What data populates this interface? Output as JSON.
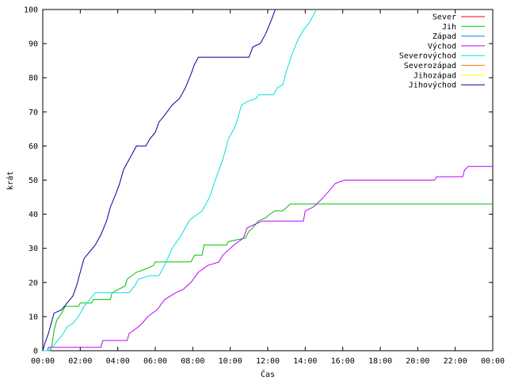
{
  "chart_data": {
    "type": "line",
    "title": "",
    "xlabel": "Čas",
    "ylabel": "krát",
    "xlim": [
      0,
      24
    ],
    "ylim": [
      0,
      100
    ],
    "x_ticks": [
      0,
      2,
      4,
      6,
      8,
      10,
      12,
      14,
      16,
      18,
      20,
      22,
      24
    ],
    "x_tick_labels": [
      "00:00",
      "02:00",
      "04:00",
      "06:00",
      "08:00",
      "10:00",
      "12:00",
      "14:00",
      "16:00",
      "18:00",
      "20:00",
      "22:00",
      "00:00"
    ],
    "y_ticks": [
      0,
      10,
      20,
      30,
      40,
      50,
      60,
      70,
      80,
      90,
      100
    ],
    "y_tick_labels": [
      "0",
      "10",
      "20",
      "30",
      "40",
      "50",
      "60",
      "70",
      "80",
      "90",
      "100"
    ],
    "grid": false,
    "legend_position": "top-right",
    "series": [
      {
        "name": "Sever",
        "color": "#ff0000",
        "points": []
      },
      {
        "name": "Jih",
        "color": "#00c000",
        "points": [
          [
            0,
            0
          ],
          [
            0.4,
            0
          ],
          [
            0.5,
            2
          ],
          [
            0.6,
            6
          ],
          [
            0.75,
            9
          ],
          [
            1.0,
            11
          ],
          [
            1.2,
            13
          ],
          [
            1.9,
            13
          ],
          [
            2.0,
            14
          ],
          [
            2.6,
            14
          ],
          [
            2.7,
            15
          ],
          [
            3.6,
            15
          ],
          [
            3.7,
            17
          ],
          [
            4.4,
            19
          ],
          [
            4.5,
            21
          ],
          [
            5.0,
            23
          ],
          [
            5.5,
            24
          ],
          [
            5.9,
            25
          ],
          [
            6.0,
            26
          ],
          [
            7.9,
            26
          ],
          [
            8.1,
            28
          ],
          [
            8.5,
            28
          ],
          [
            8.6,
            31
          ],
          [
            9.8,
            31
          ],
          [
            9.9,
            32
          ],
          [
            10.8,
            33
          ],
          [
            11.0,
            35
          ],
          [
            11.2,
            36
          ],
          [
            11.5,
            38
          ],
          [
            11.9,
            39
          ],
          [
            12.1,
            40
          ],
          [
            12.4,
            41
          ],
          [
            12.8,
            41
          ],
          [
            13.0,
            42
          ],
          [
            13.2,
            43
          ],
          [
            24,
            43
          ]
        ]
      },
      {
        "name": "Západ",
        "color": "#0080ff",
        "points": []
      },
      {
        "name": "Východ",
        "color": "#c000ff",
        "points": [
          [
            0,
            0
          ],
          [
            0.25,
            0
          ],
          [
            0.3,
            1
          ],
          [
            3.1,
            1
          ],
          [
            3.2,
            3
          ],
          [
            4.5,
            3
          ],
          [
            4.6,
            5
          ],
          [
            5.1,
            7
          ],
          [
            5.3,
            8
          ],
          [
            5.6,
            10
          ],
          [
            6.1,
            12
          ],
          [
            6.5,
            15
          ],
          [
            7.1,
            17
          ],
          [
            7.5,
            18
          ],
          [
            7.9,
            20
          ],
          [
            8.3,
            23
          ],
          [
            8.8,
            25
          ],
          [
            9.4,
            26
          ],
          [
            9.6,
            28
          ],
          [
            10.0,
            30
          ],
          [
            10.2,
            31
          ],
          [
            10.7,
            33
          ],
          [
            10.9,
            36
          ],
          [
            11.3,
            37
          ],
          [
            11.7,
            38
          ],
          [
            13.9,
            38
          ],
          [
            14.0,
            41
          ],
          [
            14.4,
            42
          ],
          [
            14.8,
            44
          ],
          [
            15.3,
            47
          ],
          [
            15.6,
            49
          ],
          [
            16.1,
            50
          ],
          [
            20.9,
            50
          ],
          [
            21.0,
            51
          ],
          [
            22.4,
            51
          ],
          [
            22.5,
            53
          ],
          [
            22.7,
            54
          ],
          [
            24,
            54
          ]
        ]
      },
      {
        "name": "Severovýchod",
        "color": "#00e0e0",
        "points": [
          [
            0,
            0
          ],
          [
            0.3,
            0
          ],
          [
            0.5,
            1
          ],
          [
            0.8,
            3
          ],
          [
            1.1,
            5
          ],
          [
            1.3,
            7
          ],
          [
            1.6,
            8
          ],
          [
            1.9,
            10
          ],
          [
            2.2,
            13
          ],
          [
            2.5,
            15
          ],
          [
            2.8,
            17
          ],
          [
            4.6,
            17
          ],
          [
            4.9,
            19
          ],
          [
            5.1,
            21
          ],
          [
            5.7,
            22
          ],
          [
            6.2,
            22
          ],
          [
            6.5,
            25
          ],
          [
            6.9,
            30
          ],
          [
            7.4,
            34
          ],
          [
            7.8,
            38
          ],
          [
            8.0,
            39
          ],
          [
            8.5,
            41
          ],
          [
            8.9,
            45
          ],
          [
            9.2,
            50
          ],
          [
            9.6,
            56
          ],
          [
            9.9,
            62
          ],
          [
            10.2,
            65
          ],
          [
            10.4,
            68
          ],
          [
            10.6,
            72
          ],
          [
            10.9,
            73
          ],
          [
            11.4,
            74
          ],
          [
            11.5,
            75
          ],
          [
            12.3,
            75
          ],
          [
            12.5,
            77
          ],
          [
            12.8,
            78
          ],
          [
            13.0,
            82
          ],
          [
            13.3,
            87
          ],
          [
            13.6,
            91
          ],
          [
            13.9,
            94
          ],
          [
            14.2,
            96
          ],
          [
            14.4,
            98
          ],
          [
            14.6,
            100
          ]
        ]
      },
      {
        "name": "Severozápad",
        "color": "#ff8000",
        "points": []
      },
      {
        "name": "Jihozápad",
        "color": "#ffff00",
        "points": []
      },
      {
        "name": "Jihovýchod",
        "color": "#0000a0",
        "points": [
          [
            0,
            0
          ],
          [
            0.1,
            2
          ],
          [
            0.3,
            5
          ],
          [
            0.5,
            9
          ],
          [
            0.6,
            11
          ],
          [
            1.0,
            12
          ],
          [
            1.3,
            14
          ],
          [
            1.6,
            16
          ],
          [
            1.8,
            19
          ],
          [
            2.0,
            23
          ],
          [
            2.2,
            27
          ],
          [
            2.5,
            29
          ],
          [
            2.8,
            31
          ],
          [
            3.1,
            34
          ],
          [
            3.4,
            38
          ],
          [
            3.6,
            42
          ],
          [
            3.9,
            46
          ],
          [
            4.1,
            49
          ],
          [
            4.3,
            53
          ],
          [
            4.6,
            56
          ],
          [
            4.8,
            58
          ],
          [
            5.0,
            60
          ],
          [
            5.5,
            60
          ],
          [
            5.7,
            62
          ],
          [
            6.0,
            64
          ],
          [
            6.2,
            67
          ],
          [
            6.5,
            69
          ],
          [
            6.9,
            72
          ],
          [
            7.3,
            74
          ],
          [
            7.6,
            77
          ],
          [
            7.9,
            81
          ],
          [
            8.1,
            84
          ],
          [
            8.3,
            86
          ],
          [
            11.0,
            86
          ],
          [
            11.2,
            89
          ],
          [
            11.6,
            90
          ],
          [
            11.9,
            93
          ],
          [
            12.2,
            97
          ],
          [
            12.4,
            100
          ]
        ]
      }
    ]
  }
}
